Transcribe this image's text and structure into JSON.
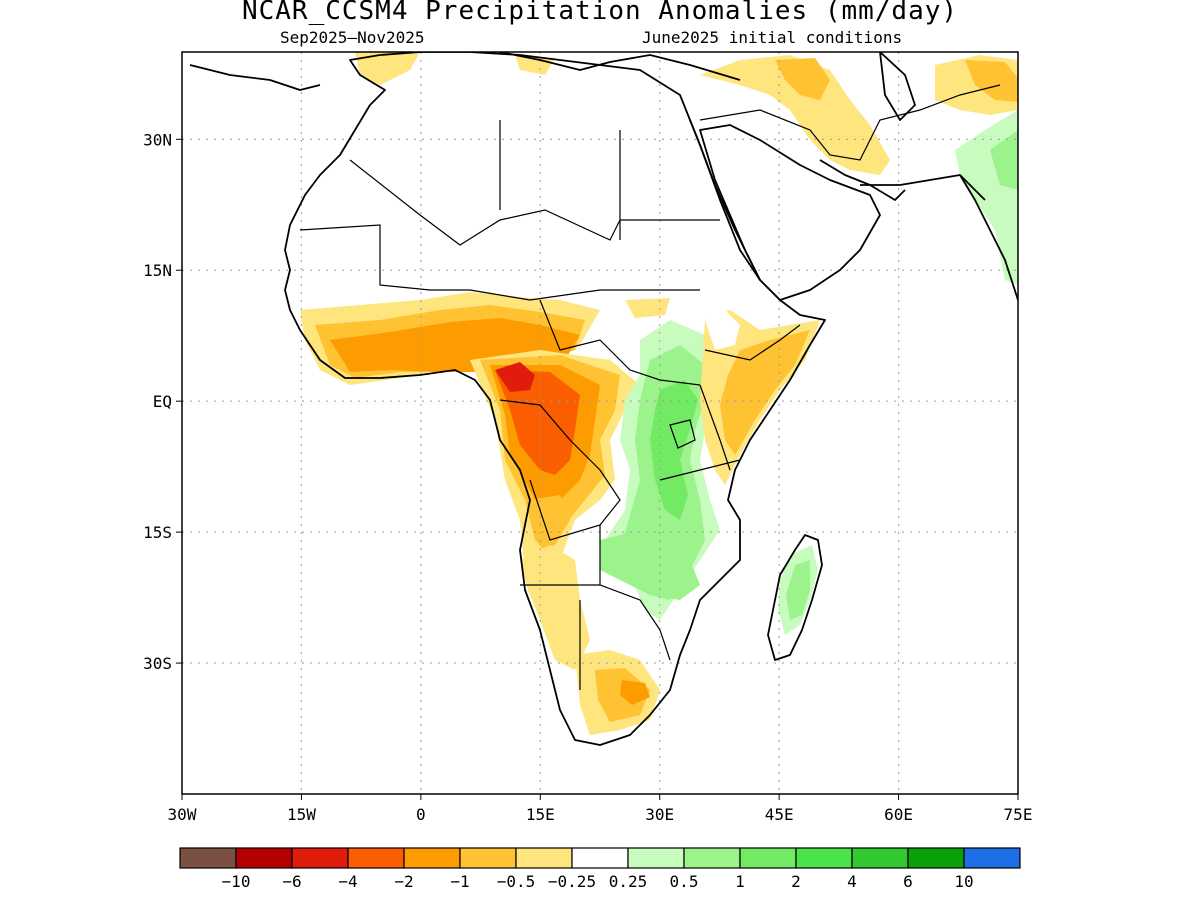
{
  "title": "NCAR_CCSM4 Precipitation Anomalies (mm/day)",
  "subtitle_left": "Sep2025–Nov2025",
  "subtitle_right": "June2025 initial conditions",
  "map": {
    "lon_range": [
      -30,
      75
    ],
    "lat_range": [
      -45,
      40
    ],
    "x_ticks": [
      {
        "value": -30,
        "label": "30W"
      },
      {
        "value": -15,
        "label": "15W"
      },
      {
        "value": 0,
        "label": "0"
      },
      {
        "value": 15,
        "label": "15E"
      },
      {
        "value": 30,
        "label": "30E"
      },
      {
        "value": 45,
        "label": "45E"
      },
      {
        "value": 60,
        "label": "60E"
      },
      {
        "value": 75,
        "label": "75E"
      }
    ],
    "y_ticks": [
      {
        "value": 30,
        "label": "30N"
      },
      {
        "value": 15,
        "label": "15N"
      },
      {
        "value": 0,
        "label": "EQ"
      },
      {
        "value": -15,
        "label": "15S"
      },
      {
        "value": -30,
        "label": "30S"
      }
    ],
    "gridlines": "dotted"
  },
  "colorbar": {
    "colors": [
      "#7b5042",
      "#b40000",
      "#e01c0c",
      "#fa5e00",
      "#fd9c00",
      "#fec232",
      "#fee57e",
      "#ffffff",
      "#c8fbbe",
      "#9cf38c",
      "#72ea64",
      "#4be34b",
      "#32c832",
      "#0aa00a",
      "#1e6ee6"
    ],
    "labels": [
      "-10",
      "-6",
      "-4",
      "-2",
      "-1",
      "-0.5",
      "-0.25",
      "0.25",
      "0.5",
      "1",
      "2",
      "4",
      "6",
      "10"
    ]
  },
  "anomaly_regions": [
    {
      "name": "west-africa-dry",
      "color": "#fd9c00"
    },
    {
      "name": "central-africa-dry",
      "color": "#e01c0c"
    },
    {
      "name": "east-africa-wet",
      "color": "#9cf38c"
    },
    {
      "name": "horn-dry",
      "color": "#fec232"
    },
    {
      "name": "madagascar-wet",
      "color": "#9cf38c"
    },
    {
      "name": "southern-africa-dry",
      "color": "#fee57e"
    }
  ]
}
